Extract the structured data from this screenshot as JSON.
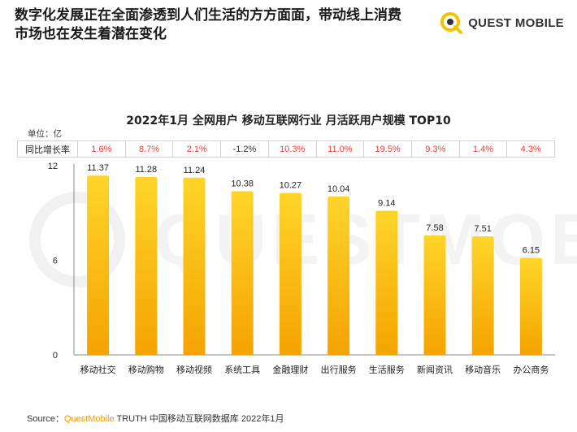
{
  "headline": "数字化发展正在全面渗透到人们生活的方方面面，带动线上消费\n市场也在发生着潜在变化",
  "brand": {
    "name": "QUEST MOBILE",
    "logo_icon": "questmobile-logo-icon",
    "accent": "#f5c200"
  },
  "watermark": "QUESTMOBILE",
  "colors": {
    "bar_top": "#ffd52a",
    "bar_bottom": "#f5a300",
    "positive": "#e8413a",
    "negative": "#333333"
  },
  "chart_data": {
    "type": "bar",
    "title": "2022年1月 全网用户 移动互联网行业 月活跃用户规模 TOP10",
    "unit_label": "单位：亿",
    "categories": [
      "移动社交",
      "移动购物",
      "移动视频",
      "系统工具",
      "金融理财",
      "出行服务",
      "生活服务",
      "新闻资讯",
      "移动音乐",
      "办公商务"
    ],
    "values": [
      11.37,
      11.28,
      11.24,
      10.38,
      10.27,
      10.04,
      9.14,
      7.58,
      7.51,
      6.15
    ],
    "value_labels": [
      "11.37",
      "11.28",
      "11.24",
      "10.38",
      "10.27",
      "10.04",
      "9.14",
      "7.58",
      "7.51",
      "6.15"
    ],
    "ylim": [
      0,
      12
    ],
    "yticks": [
      "0",
      "6",
      "12"
    ],
    "growth_row_label": "同比增长率",
    "growth": [
      "1.6%",
      "8.7%",
      "2.1%",
      "-1.2%",
      "10.3%",
      "11.0%",
      "19.5%",
      "9.3%",
      "1.4%",
      "4.3%"
    ]
  },
  "source": {
    "prefix": "Source：",
    "brand": "QuestMobile",
    "rest": " TRUTH 中国移动互联网数据库 2022年1月"
  }
}
